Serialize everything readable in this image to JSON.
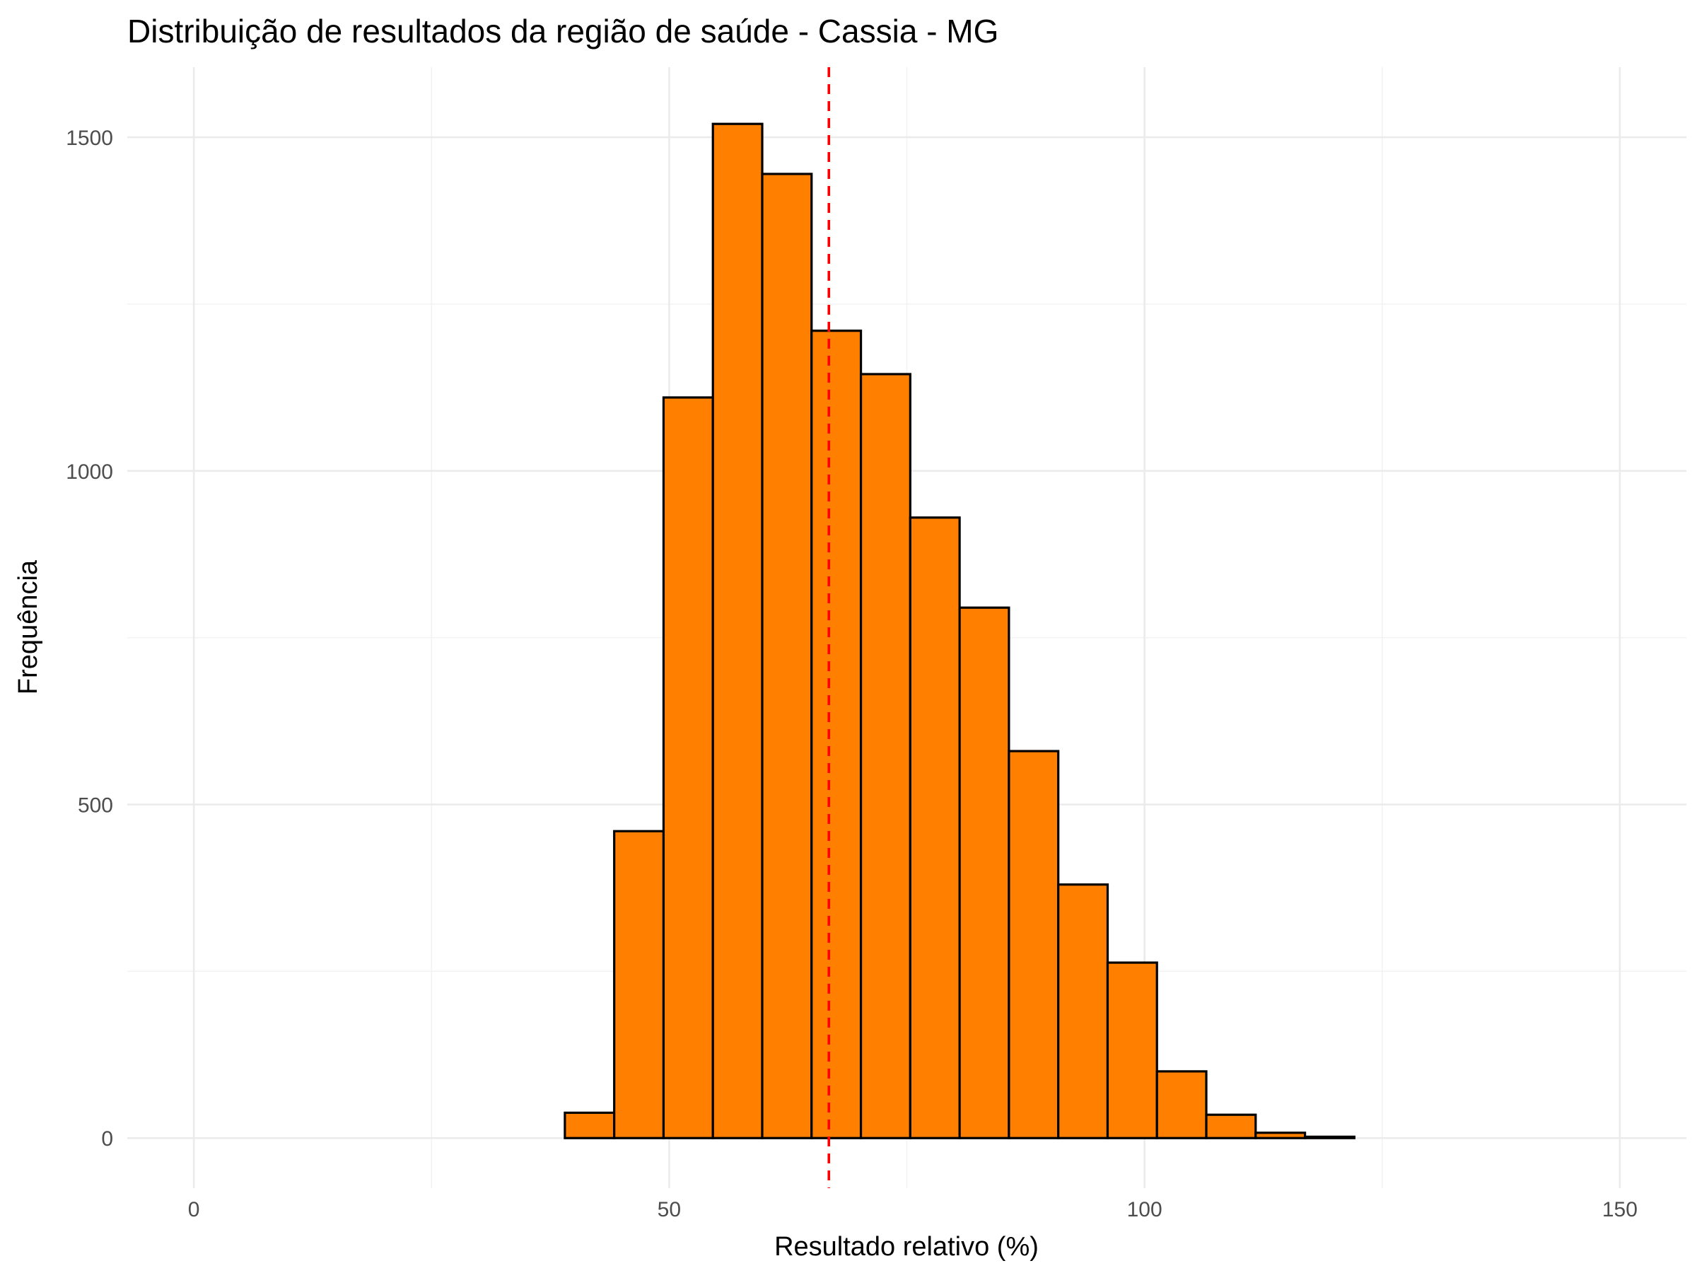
{
  "chart_data": {
    "type": "bar",
    "subtype": "histogram",
    "title": "Distribuição de resultados da região de saúde - Cassia - MG",
    "xlabel": "Resultado relativo (%)",
    "ylabel": "Frequência",
    "xlim": [
      -7,
      157
    ],
    "ylim": [
      -75,
      1605
    ],
    "x_ticks": [
      0,
      50,
      100,
      150
    ],
    "x_tick_labels": [
      "0",
      "50",
      "100",
      "150"
    ],
    "y_ticks": [
      0,
      500,
      1000,
      1500
    ],
    "y_tick_labels": [
      "0",
      "500",
      "1000",
      "1500"
    ],
    "x_minor_ticks": [
      25,
      75,
      125
    ],
    "y_minor_ticks": [
      250,
      750,
      1250
    ],
    "grid": true,
    "bin_width": 5.19,
    "bin_start": 2.7,
    "counts": [
      0,
      0,
      0,
      0,
      0,
      0,
      0,
      38,
      460,
      1110,
      1520,
      1445,
      1210,
      1145,
      930,
      795,
      580,
      380,
      263,
      100,
      35,
      8,
      2,
      0,
      0,
      0,
      0,
      0
    ],
    "bar_fill": "#ff8000",
    "bar_outline": "#000000",
    "mean_line": {
      "x": 66.8,
      "color": "#ff0000",
      "style": "dashed"
    }
  }
}
